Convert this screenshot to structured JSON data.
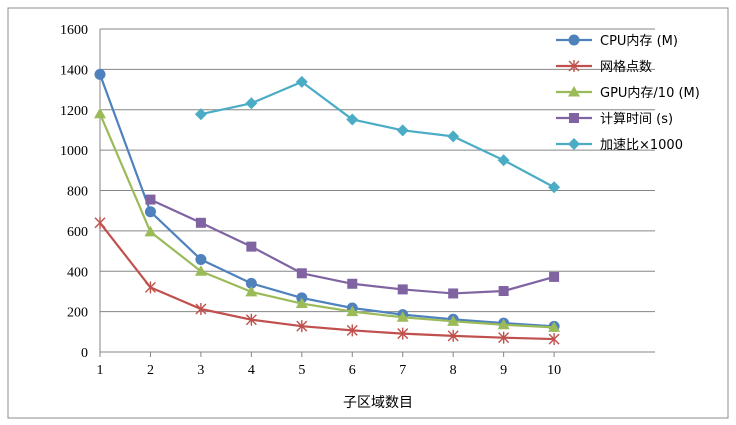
{
  "chart_data": {
    "type": "line",
    "title": "",
    "xlabel": "子区域数目",
    "ylabel": "",
    "x": [
      1,
      2,
      3,
      4,
      5,
      6,
      7,
      8,
      9,
      10
    ],
    "xlim": [
      1,
      12
    ],
    "ylim": [
      0,
      1600
    ],
    "yticks": [
      0,
      200,
      400,
      600,
      800,
      1000,
      1200,
      1400,
      1600
    ],
    "grid": true,
    "legend_position": "top-right",
    "series": [
      {
        "name": "CPU内存 (M)",
        "marker": "circle",
        "color": "#4f81bd",
        "values": [
          1375,
          695,
          458,
          340,
          268,
          218,
          185,
          162,
          143,
          127
        ]
      },
      {
        "name": "网格点数",
        "marker": "asterisk",
        "color": "#c0504d",
        "values": [
          640,
          320,
          213,
          160,
          128,
          107,
          91,
          80,
          71,
          64
        ]
      },
      {
        "name": "GPU内存/10 (M)",
        "marker": "triangle",
        "color": "#9bbb59",
        "values": [
          1180,
          595,
          400,
          298,
          240,
          200,
          172,
          152,
          135,
          122
        ]
      },
      {
        "name": "计算时间 (s)",
        "marker": "square",
        "color": "#8064a2",
        "values": [
          null,
          755,
          640,
          522,
          390,
          338,
          310,
          290,
          302,
          372
        ]
      },
      {
        "name": "加速比×1000",
        "marker": "diamond",
        "color": "#4bacc6",
        "values": [
          null,
          null,
          1178,
          1232,
          1338,
          1152,
          1098,
          1068,
          950,
          816
        ]
      }
    ]
  }
}
